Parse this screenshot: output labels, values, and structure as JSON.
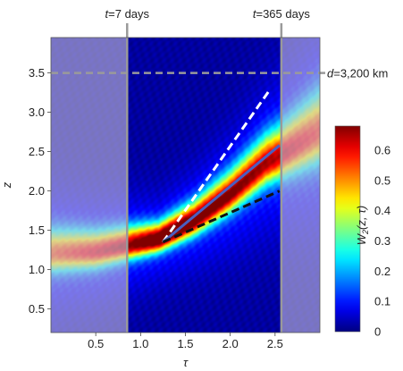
{
  "chart_data": {
    "type": "heatmap",
    "xlabel": "τ",
    "ylabel": "z",
    "xlim": [
      0.0,
      3.0
    ],
    "ylim": [
      0.2,
      3.95
    ],
    "xticks": [
      "0.5",
      "1.0",
      "1.5",
      "2.0",
      "2.5"
    ],
    "yticks": [
      "0.5",
      "1.0",
      "1.5",
      "2.0",
      "2.5",
      "3.0",
      "3.5"
    ],
    "x_tick_values": [
      0.5,
      1.0,
      1.5,
      2.0,
      2.5
    ],
    "y_tick_values": [
      0.5,
      1.0,
      1.5,
      2.0,
      2.5,
      3.0,
      3.5
    ],
    "colorbar": {
      "label_prefix": "W",
      "label_sub": "2",
      "label_suffix": "(z, τ)",
      "range": [
        0.0,
        0.68
      ],
      "ticks": [
        "0",
        "0.1",
        "0.2",
        "0.3",
        "0.4",
        "0.5",
        "0.6"
      ],
      "tick_values": [
        0,
        0.1,
        0.2,
        0.3,
        0.4,
        0.5,
        0.6
      ],
      "colormap": "jet"
    },
    "vertical_markers": [
      {
        "x": 0.85,
        "prefix": "t",
        "suffix": "=7 days"
      },
      {
        "x": 2.57,
        "prefix": "t",
        "suffix": "=365 days"
      }
    ],
    "horizontal_marker": {
      "y": 3.5,
      "prefix": "d",
      "suffix": "=3,200 km"
    },
    "ridge": {
      "points": [
        [
          0.0,
          1.2
        ],
        [
          0.5,
          1.22
        ],
        [
          0.85,
          1.3
        ],
        [
          1.2,
          1.38
        ],
        [
          1.6,
          1.62
        ],
        [
          2.0,
          1.95
        ],
        [
          2.4,
          2.35
        ],
        [
          2.57,
          2.45
        ],
        [
          3.0,
          2.75
        ]
      ],
      "width_points": [
        [
          0.0,
          0.18
        ],
        [
          1.2,
          0.12
        ],
        [
          1.6,
          0.14
        ],
        [
          2.0,
          0.17
        ],
        [
          2.57,
          0.22
        ],
        [
          3.0,
          0.3
        ]
      ],
      "peak_points": [
        [
          0.0,
          0.42
        ],
        [
          0.85,
          0.55
        ],
        [
          1.25,
          0.68
        ],
        [
          1.6,
          0.63
        ],
        [
          2.0,
          0.58
        ],
        [
          2.57,
          0.52
        ],
        [
          3.0,
          0.45
        ]
      ]
    },
    "lines": [
      {
        "name": "white-dashed",
        "color": "#ffffff",
        "dash": true,
        "points": [
          [
            1.25,
            1.35
          ],
          [
            2.45,
            3.3
          ]
        ]
      },
      {
        "name": "blue-solid",
        "color": "#4a5fc0",
        "dash": false,
        "points": [
          [
            1.25,
            1.35
          ],
          [
            2.55,
            2.58
          ]
        ]
      },
      {
        "name": "black-dashed",
        "color": "#111111",
        "dash": true,
        "points": [
          [
            1.25,
            1.35
          ],
          [
            2.55,
            2.0
          ]
        ]
      }
    ],
    "shade_color": "#c9c2dc",
    "shade_opacity": 0.6,
    "marker_line_color": "#9a9a9a"
  }
}
